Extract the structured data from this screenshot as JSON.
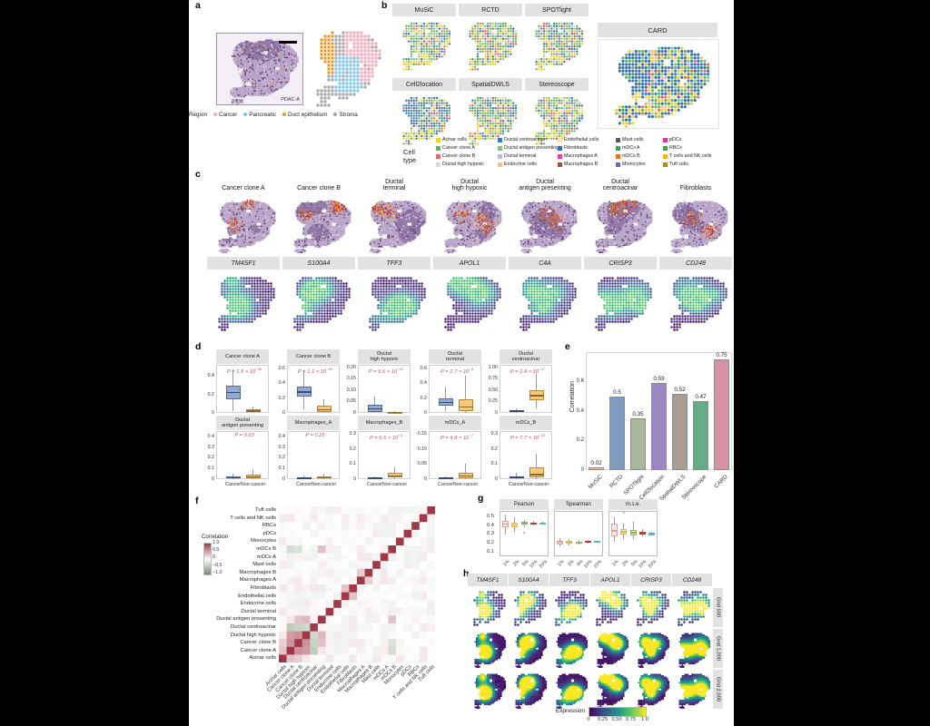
{
  "panel_a": {
    "letter": "a",
    "image_label": "PDAC-A",
    "region_legend": {
      "title": "Region",
      "items": [
        {
          "label": "Cancer",
          "color": "#f7a8bc"
        },
        {
          "label": "Pancreatic",
          "color": "#7ec4ee"
        },
        {
          "label": "Duct epithelium",
          "color": "#e49a2a"
        },
        {
          "label": "Stroma",
          "color": "#a6a6a6"
        }
      ]
    }
  },
  "panel_b": {
    "letter": "b",
    "methods": [
      "MuSiC",
      "RCTD",
      "SPOTlight",
      "Cell2location",
      "SpatialDWLS",
      "Stereoscope"
    ],
    "card": "CARD",
    "cell_type_legend": {
      "title": "Cell type",
      "columns": [
        [
          {
            "label": "Acinar cells",
            "color": "#f5d327"
          },
          {
            "label": "Cancer clone A",
            "color": "#66b05c"
          },
          {
            "label": "Cancer clone B",
            "color": "#e06a74"
          },
          {
            "label": "Ductal high hypoxic",
            "color": "#d9d9d9"
          }
        ],
        [
          {
            "label": "Ductal centroacinar",
            "color": "#3a78c2"
          },
          {
            "label": "Ductal antigen presenting",
            "color": "#7cc47e"
          },
          {
            "label": "Ductal terminal",
            "color": "#c2b8dc"
          },
          {
            "label": "Endocrine cells",
            "color": "#f5c08a"
          }
        ],
        [
          {
            "label": "Endothelial cells",
            "color": "#f3e7a2"
          },
          {
            "label": "Fibroblasts",
            "color": "#2e6db4"
          },
          {
            "label": "Macrophages A",
            "color": "#e84393"
          },
          {
            "label": "Macrophages B",
            "color": "#a0522d"
          }
        ],
        [
          {
            "label": "Mast cells",
            "color": "#5a5a5a"
          },
          {
            "label": "mDCs A",
            "color": "#39a05c"
          },
          {
            "label": "mDCs B",
            "color": "#e8711a"
          },
          {
            "label": "Monocytes",
            "color": "#6a6ab8"
          }
        ],
        [
          {
            "label": "pDCs",
            "color": "#d63a8e"
          },
          {
            "label": "RBCs",
            "color": "#3aa83a"
          },
          {
            "label": "T cells and NK cells",
            "color": "#f0b429"
          },
          {
            "label": "Tuft cells",
            "color": "#b8860b"
          }
        ]
      ]
    }
  },
  "panel_c": {
    "letter": "c",
    "columns": [
      {
        "title": "Cancer clone A",
        "gene": "TM4SF1"
      },
      {
        "title": "Cancer clone B",
        "gene": "S100A4"
      },
      {
        "title": "Ductal\nterminal",
        "gene": "TFF3"
      },
      {
        "title": "Ductal\nhigh hypoxic",
        "gene": "APOL1"
      },
      {
        "title": "Ductal\nantigen presenting",
        "gene": "C4A"
      },
      {
        "title": "Ductal\ncentroacinar",
        "gene": "CRISP3"
      },
      {
        "title": "Fibroblasts",
        "gene": "CD248"
      }
    ]
  },
  "chart_data": [
    {
      "id": "panel_d_boxplots",
      "type": "boxplot",
      "panel_letter": "d",
      "x_labels": [
        "Cancer",
        "Non-cancer"
      ],
      "group_colors": [
        "#93a8d4",
        "#f8c878"
      ],
      "p_color": "#c84a6a",
      "subpanels": [
        {
          "title": "Cancer clone A",
          "p_base": "P = 1.9 × 10",
          "p_exp": "−46",
          "ymax": 0.52,
          "ticks": [
            "0",
            "0.2",
            "0.4"
          ],
          "cancer": [
            0.02,
            0.15,
            0.22,
            0.29,
            0.47
          ],
          "non_cancer": [
            0,
            0.005,
            0.02,
            0.035,
            0.07
          ]
        },
        {
          "title": "Cancer clone B",
          "p_base": "P = 1.1 × 10",
          "p_exp": "−43",
          "ymax": 0.65,
          "ticks": [
            "0",
            "0.2",
            "0.4",
            "0.6"
          ],
          "cancer": [
            0.05,
            0.22,
            0.28,
            0.35,
            0.58
          ],
          "non_cancer": [
            0,
            0.01,
            0.04,
            0.1,
            0.19
          ]
        },
        {
          "title": "Ductal\nhigh hypoxic",
          "p_base": "P = 5.6 × 10",
          "p_exp": "−37",
          "ymax": 0.21,
          "ticks": [
            "0",
            "0.05",
            "0.10",
            "0.15",
            "0.20"
          ],
          "cancer": [
            0,
            0.005,
            0.018,
            0.035,
            0.07
          ],
          "non_cancer": [
            0,
            0.001,
            0.003,
            0.005,
            0.008
          ]
        },
        {
          "title": "Ductal\nterminal",
          "p_base": "P = 2.7 × 10",
          "p_exp": "−4",
          "ymax": 0.65,
          "ticks": [
            "0",
            "0.2",
            "0.4",
            "0.6"
          ],
          "cancer": [
            0.02,
            0.1,
            0.14,
            0.2,
            0.36
          ],
          "non_cancer": [
            0,
            0.03,
            0.08,
            0.19,
            0.5
          ]
        },
        {
          "title": "Ductal\ncentroacinar",
          "p_base": "P = 2.4 × 10",
          "p_exp": "−27",
          "ymax": 1.05,
          "ticks": [
            "0",
            "0.25",
            "0.50",
            "0.75",
            "1.00"
          ],
          "cancer": [
            0,
            0.02,
            0.04,
            0.06,
            0.1
          ],
          "non_cancer": [
            0.1,
            0.27,
            0.38,
            0.5,
            0.85
          ]
        },
        {
          "title": "Ductal\nantigen presenting",
          "p_base": "P = 0.93",
          "p_exp": "",
          "ymax": 0.45,
          "ticks": [
            "0",
            "0.1",
            "0.2",
            "0.3",
            "0.4"
          ],
          "cancer": [
            0,
            0.005,
            0.015,
            0.025,
            0.05
          ],
          "non_cancer": [
            0,
            0.01,
            0.02,
            0.04,
            0.09
          ]
        },
        {
          "title": "Macrophages_A",
          "p_base": "P = 0.25",
          "p_exp": "",
          "ymax": 0.45,
          "ticks": [
            "0",
            "0.1",
            "0.2",
            "0.3",
            "0.4"
          ],
          "cancer": [
            0,
            0.004,
            0.01,
            0.018,
            0.035
          ],
          "non_cancer": [
            0,
            0.006,
            0.015,
            0.026,
            0.05
          ]
        },
        {
          "title": "Macrophages_B",
          "p_base": "P = 6.6 × 10",
          "p_exp": "−4",
          "ymax": 0.32,
          "ticks": [
            "0",
            "0.1",
            "0.2",
            "0.3"
          ],
          "cancer": [
            0,
            0.003,
            0.007,
            0.012,
            0.02
          ],
          "non_cancer": [
            0,
            0.01,
            0.02,
            0.04,
            0.08
          ]
        },
        {
          "title": "mDCs_A",
          "p_base": "P = 4.8 × 10",
          "p_exp": "−7",
          "ymax": 0.16,
          "ticks": [
            "0",
            "0.05",
            "0.10",
            "0.15"
          ],
          "cancer": [
            0,
            0.001,
            0.003,
            0.005,
            0.01
          ],
          "non_cancer": [
            0,
            0.004,
            0.01,
            0.02,
            0.05
          ]
        },
        {
          "title": "mDCs_B",
          "p_base": "P = 7.7 × 10",
          "p_exp": "−10",
          "ymax": 0.32,
          "ticks": [
            "0",
            "0.1",
            "0.2",
            "0.3"
          ],
          "cancer": [
            0,
            0.005,
            0.012,
            0.02,
            0.04
          ],
          "non_cancer": [
            0,
            0.012,
            0.03,
            0.08,
            0.17
          ]
        }
      ]
    },
    {
      "id": "panel_e_bars",
      "type": "bar",
      "panel_letter": "e",
      "ylabel": "Correlation",
      "ylim": [
        0,
        0.8
      ],
      "ticks": [
        "0",
        "0.2",
        "0.4",
        "0.6"
      ],
      "categories": [
        "MuSiC",
        "RCTD",
        "SPOTlight",
        "Cell2location",
        "SpatialDWLS",
        "Stereoscope",
        "CARD"
      ],
      "values": [
        0.02,
        0.5,
        0.35,
        0.59,
        0.52,
        0.47,
        0.75
      ],
      "value_labels": [
        "0.02",
        "0.5",
        "0.35",
        "0.59",
        "0.52",
        "0.47",
        "0.75"
      ],
      "colors": [
        "#f0c694",
        "#7f9cbe",
        "#a9b79a",
        "#9d87c4",
        "#a79d90",
        "#67aa88",
        "#d893a3"
      ]
    },
    {
      "id": "panel_f_heatmap",
      "type": "heatmap",
      "panel_letter": "f",
      "legend_title": "Correlation",
      "legend_ticks": [
        "1.0",
        "0.5",
        "0",
        "−0.5",
        "−1.0"
      ],
      "positive_color": "#a13848",
      "negative_color": "#74906e",
      "labels": [
        "Acinar cells",
        "Cancer clone A",
        "Cancer clone B",
        "Ductal high hypoxic",
        "Ductal centroacinar",
        "Ductal antigen presenting",
        "Ductal terminal",
        "Endocrine cells",
        "Endothelial cells",
        "Fibroblasts",
        "Macrophages A",
        "Macrophages B",
        "Mast cells",
        "mDCs A",
        "mDCs B",
        "Monocytes",
        "pDCs",
        "RBCs",
        "T cells and NK cells",
        "Tuft cells"
      ],
      "diagonal_value": 1.0,
      "notable_pairs": [
        [
          "Cancer clone A",
          "Cancer clone B",
          0.55
        ],
        [
          "Cancer clone A",
          "Ductal high hypoxic",
          0.5
        ],
        [
          "Cancer clone B",
          "Ductal high hypoxic",
          0.55
        ],
        [
          "Acinar cells",
          "Cancer clone A",
          0.3
        ],
        [
          "Acinar cells",
          "Cancer clone B",
          0.25
        ],
        [
          "Cancer clone A",
          "Ductal centroacinar",
          -0.45
        ],
        [
          "Cancer clone B",
          "Ductal centroacinar",
          -0.4
        ],
        [
          "Ductal high hypoxic",
          "Ductal centroacinar",
          -0.35
        ],
        [
          "Cancer clone A",
          "mDCs B",
          -0.3
        ],
        [
          "Cancer clone B",
          "mDCs B",
          -0.25
        ],
        [
          "Ductal high hypoxic",
          "Ductal antigen presenting",
          0.35
        ],
        [
          "Cancer clone B",
          "Ductal antigen presenting",
          0.3
        ],
        [
          "Ductal antigen presenting",
          "mDCs B",
          0.3
        ],
        [
          "Macrophages A",
          "Macrophages B",
          0.25
        ],
        [
          "Endothelial cells",
          "Fibroblasts",
          0.3
        ]
      ]
    },
    {
      "id": "panel_g_boxplots",
      "type": "boxplot",
      "panel_letter": "g",
      "subpanels": [
        "Pearson",
        "Spearman",
        "m.s.e."
      ],
      "x_labels": [
        "1%",
        "2%",
        "5%",
        "10%",
        "20%"
      ],
      "colors": [
        "#e89a93",
        "#e2b25c",
        "#93ae70",
        "#a8453c",
        "#5ab4c8"
      ],
      "ticks": [
        "0.1",
        "0.2",
        "0.3",
        "0.4",
        "0.5"
      ],
      "stats": {
        "Pearson": [
          [
            0.3,
            0.38,
            0.42,
            0.46,
            0.53
          ],
          [
            0.33,
            0.38,
            0.41,
            0.44,
            0.5
          ],
          [
            0.38,
            0.41,
            0.43,
            0.45,
            0.47
          ],
          [
            0.4,
            0.42,
            0.43,
            0.44,
            0.46
          ],
          [
            0.41,
            0.42,
            0.43,
            0.435,
            0.45
          ]
        ],
        "Spearman": [
          [
            0.16,
            0.19,
            0.21,
            0.23,
            0.26
          ],
          [
            0.17,
            0.2,
            0.21,
            0.23,
            0.25
          ],
          [
            0.18,
            0.2,
            0.21,
            0.22,
            0.24
          ],
          [
            0.2,
            0.21,
            0.22,
            0.225,
            0.24
          ],
          [
            0.21,
            0.215,
            0.22,
            0.225,
            0.23
          ]
        ],
        "m.s.e.": [
          [
            0.22,
            0.28,
            0.34,
            0.42,
            0.5
          ],
          [
            0.25,
            0.3,
            0.33,
            0.36,
            0.42
          ],
          [
            0.25,
            0.29,
            0.32,
            0.35,
            0.45
          ],
          [
            0.28,
            0.3,
            0.31,
            0.33,
            0.36
          ],
          [
            0.29,
            0.3,
            0.31,
            0.315,
            0.33
          ]
        ]
      },
      "outliers": {
        "Pearson": [
          [
            2,
            0.32
          ]
        ],
        "m.s.e.": [
          [
            1,
            0.55
          ]
        ]
      }
    },
    {
      "id": "panel_h_maps",
      "type": "heatmap",
      "panel_letter": "h",
      "genes": [
        "TM4SF1",
        "S100A4",
        "TFF3",
        "APOL1",
        "CRISP3",
        "CD248"
      ],
      "rows": [
        "Grid 500",
        "Grid 1,000",
        "Grid 2,000"
      ],
      "colorbar": {
        "label": "Expression",
        "ticks": [
          "0",
          "0.25",
          "0.50",
          "0.75",
          "1.0"
        ]
      }
    }
  ]
}
